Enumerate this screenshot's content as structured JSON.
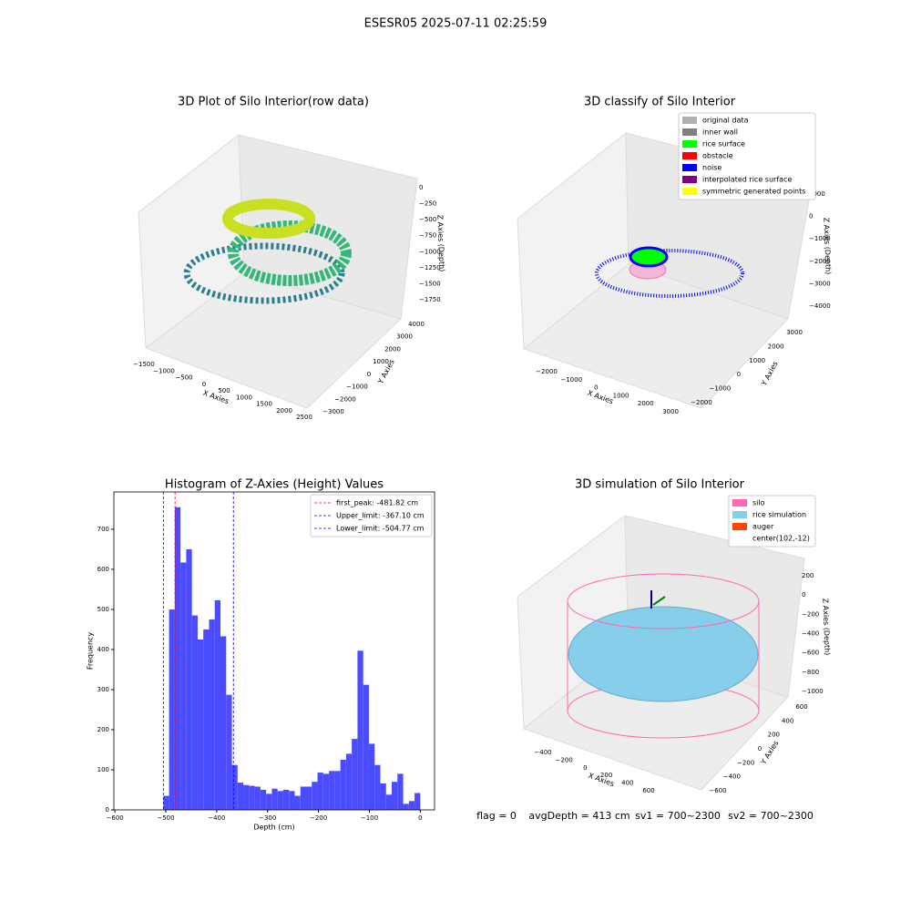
{
  "suptitle": "ESESR05 2025-07-11 02:25:59",
  "status": [
    "flag = 0",
    "avgDepth = 413 cm",
    "sv1 = 700~2300",
    "sv2 = 700~2300"
  ],
  "chart_data": [
    {
      "type": "scatter3d",
      "title": "3D Plot of Silo Interior(row data)",
      "x_label": "X Axies",
      "y_label": "Y Axies",
      "z_label": "Z Axies (Depth)",
      "xticks": [
        {
          "value": -1500,
          "label": "−1500"
        },
        {
          "value": -1000,
          "label": "−1000"
        },
        {
          "value": -500,
          "label": "−500"
        },
        0,
        500,
        1000,
        1500,
        2000,
        2500
      ],
      "yticks": [
        {
          "value": -3000,
          "label": "−3000"
        },
        {
          "value": -2000,
          "label": "−2000"
        },
        {
          "value": -1000,
          "label": "−1000"
        },
        0,
        1000,
        2000,
        3000,
        4000
      ],
      "zticks": [
        0,
        {
          "value": -250,
          "label": "−250"
        },
        {
          "value": -500,
          "label": "−500"
        },
        {
          "value": -750,
          "label": "−750"
        },
        {
          "value": -1000,
          "label": "−1000"
        },
        {
          "value": -1250,
          "label": "−1250"
        },
        {
          "value": -1500,
          "label": "−1500"
        },
        {
          "value": -1750,
          "label": "−1750"
        }
      ]
    },
    {
      "type": "scatter3d",
      "title": "3D classify of Silo Interior",
      "x_label": "X Axies",
      "y_label": "Y Axies",
      "z_label": "Z Axies (Depth)",
      "xticks": [
        {
          "value": -2000,
          "label": "−2000"
        },
        {
          "value": -1000,
          "label": "−1000"
        },
        0,
        1000,
        2000,
        3000
      ],
      "yticks": [
        {
          "value": -2000,
          "label": "−2000"
        },
        {
          "value": -1000,
          "label": "−1000"
        },
        0,
        1000,
        2000,
        3000
      ],
      "zticks": [
        1000,
        0,
        {
          "value": -1000,
          "label": "−1000"
        },
        {
          "value": -2000,
          "label": "−2000"
        },
        {
          "value": -3000,
          "label": "−3000"
        },
        {
          "value": -4000,
          "label": "−4000"
        }
      ],
      "legend": [
        {
          "name": "original data",
          "color": "#b0b0b0"
        },
        {
          "name": "inner wall",
          "color": "#808080"
        },
        {
          "name": "rice surface",
          "color": "#00ff00"
        },
        {
          "name": "obstacle",
          "color": "#ff0000"
        },
        {
          "name": "noise",
          "color": "#0000ff"
        },
        {
          "name": "interpolated rice surface",
          "color": "#800080"
        },
        {
          "name": "symmetric generated points",
          "color": "#ffff00"
        }
      ]
    },
    {
      "type": "histogram",
      "title": "Histogram of Z-Axies (Height) Values",
      "x_label": "Depth (cm)",
      "y_label": "Frequency",
      "color": "#4c4cff",
      "bins": [
        -504.77,
        -493.55,
        -482.34,
        -471.12,
        -459.9,
        -448.68,
        -437.47,
        -426.25,
        -415.03,
        -403.82,
        -392.6,
        -381.38,
        -370.17,
        -358.95,
        -347.73,
        -336.51,
        -325.3,
        -314.08,
        -302.86,
        -291.65,
        -280.43,
        -269.21,
        -257.99,
        -246.78,
        -235.56,
        -224.34,
        -213.13,
        -201.91,
        -190.69,
        -179.47,
        -168.26,
        -157.04,
        -145.82,
        -134.61,
        -123.39,
        -112.17,
        -100.95,
        -89.74,
        -78.52,
        -67.3,
        -56.09,
        -44.87,
        -33.65,
        -22.44,
        -11.22,
        0
      ],
      "values": [
        35,
        500,
        755,
        617,
        650,
        485,
        425,
        450,
        475,
        523,
        433,
        287,
        112,
        68,
        62,
        60,
        58,
        50,
        40,
        53,
        47,
        50,
        47,
        35,
        58,
        58,
        70,
        93,
        90,
        97,
        97,
        125,
        140,
        177,
        397,
        312,
        165,
        112,
        66,
        38,
        70,
        90,
        15,
        22,
        42
      ],
      "xlim": [
        -602,
        28
      ],
      "ylim": [
        0,
        793
      ],
      "xticks": [
        {
          "value": -600,
          "label": "−600"
        },
        {
          "value": -500,
          "label": "−500"
        },
        {
          "value": -400,
          "label": "−400"
        },
        {
          "value": -300,
          "label": "−300"
        },
        {
          "value": -200,
          "label": "−200"
        },
        {
          "value": -100,
          "label": "−100"
        },
        0
      ],
      "yticks": [
        0,
        100,
        200,
        300,
        400,
        500,
        600,
        700
      ],
      "vlines": [
        {
          "name": "first_peak: -481.82 cm",
          "value": -481.82,
          "color": "#ff0000"
        },
        {
          "name": "Upper_limit: -367.10 cm",
          "value": -367.1,
          "color": "#0000ff"
        },
        {
          "name": "Lower_limit: -504.77 cm",
          "value": -504.77,
          "color": "#0000ff"
        }
      ]
    },
    {
      "type": "scatter3d",
      "title": "3D simulation of Silo Interior",
      "x_label": "X Axies",
      "y_label": "Y Axies",
      "z_label": "Z Axies (Depth)",
      "xticks": [
        {
          "value": -400,
          "label": "−400"
        },
        {
          "value": -200,
          "label": "−200"
        },
        0,
        200,
        400,
        600
      ],
      "yticks": [
        {
          "value": -600,
          "label": "−600"
        },
        {
          "value": -400,
          "label": "−400"
        },
        {
          "value": -200,
          "label": "−200"
        },
        0,
        200,
        400,
        600
      ],
      "zticks": [
        200,
        0,
        {
          "value": -200,
          "label": "−200"
        },
        {
          "value": -400,
          "label": "−400"
        },
        {
          "value": -600,
          "label": "−600"
        },
        {
          "value": -800,
          "label": "−800"
        },
        {
          "value": -1000,
          "label": "−1000"
        }
      ],
      "legend": [
        {
          "name": "silo",
          "color": "#ff69b4"
        },
        {
          "name": "rice simulation",
          "color": "#87ceeb"
        },
        {
          "name": "auger",
          "color": "#ff4500"
        },
        {
          "name": "center(102,-12)",
          "color": "#ffffff"
        }
      ]
    }
  ]
}
